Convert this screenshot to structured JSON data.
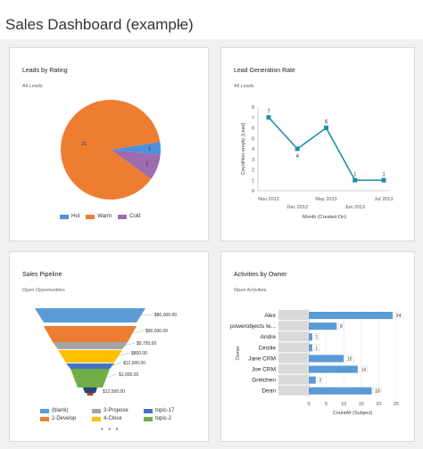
{
  "header": {
    "title": "Sales Dashboard (example)",
    "chevron_icon": "chevron-down-icon"
  },
  "cards": {
    "leads_by_rating": {
      "title": "Leads by Rating",
      "subtitle": "All Leads",
      "chart_data": {
        "type": "pie",
        "slices": [
          {
            "name": "Hot",
            "value": 1,
            "color": "#4f8fdc"
          },
          {
            "name": "Warm",
            "value": 21,
            "color": "#ed7d31"
          },
          {
            "name": "Cold",
            "value": 2,
            "color": "#9e6bae"
          }
        ],
        "data_labels": [
          "1",
          "21",
          "2"
        ],
        "legend": [
          "Hot",
          "Warm",
          "Cold"
        ],
        "legend_position": "bottom"
      }
    },
    "lead_generation_rate": {
      "title": "Lead Generation Rate",
      "subtitle": "All Leads",
      "chart_data": {
        "type": "line",
        "x": [
          "Nov 2012",
          "Dec 2012",
          "May 2013",
          "Jun 2013",
          "Jul 2013"
        ],
        "y": [
          7,
          4,
          6,
          1,
          1
        ],
        "ylim": [
          0,
          8
        ],
        "yticks": [
          "0",
          "1",
          "2",
          "3",
          "4",
          "5",
          "6",
          "7",
          "8"
        ],
        "xlabel": "Month (Created On)",
        "ylabel": "CountNon-empty (Lead)",
        "color": "#1f8fa8",
        "data_labels": [
          "7",
          "4",
          "6",
          "1",
          "1"
        ]
      }
    },
    "sales_pipeline": {
      "title": "Sales Pipeline",
      "subtitle": "Open Opportunities",
      "chart_data": {
        "type": "funnel",
        "stages": [
          {
            "name": "(blank)",
            "label": "$80,000.00",
            "color": "#5b9bd5"
          },
          {
            "name": "2-Develop",
            "label": "$90,000.00",
            "color": "#ed7d31"
          },
          {
            "name": "3-Propose",
            "label": "$5,750.00",
            "color": "#a5a5a5"
          },
          {
            "name": "4-Close",
            "label": "$800.00",
            "color": "#ffc000"
          },
          {
            "name": "topic-17",
            "label": "$12,000.00",
            "color": "#4472c4"
          },
          {
            "name": "topic-2",
            "label": "$1,500.00",
            "color": "#70ad47"
          },
          {
            "name": "",
            "label": "$12,500.00",
            "color": "#264478"
          },
          {
            "name": "",
            "label": "",
            "color": "#c0392b"
          }
        ],
        "legend": [
          "(blank)",
          "3-Propose",
          "topic-17",
          "2-Develop",
          "4-Close",
          "topic-2"
        ],
        "more": "• • •"
      }
    },
    "activities_by_owner": {
      "title": "Activities by Owner",
      "subtitle": "Open Activities",
      "chart_data": {
        "type": "bar",
        "orientation": "horizontal",
        "categories": [
          "Alex",
          "powerobjects te...",
          "Andre",
          "Cecilie",
          "Jane CRM",
          "Joe CRM",
          "Gretchen",
          "Dean"
        ],
        "values": [
          24,
          8,
          1,
          1,
          10,
          14,
          2,
          18
        ],
        "data_labels": [
          "24",
          "8",
          "1",
          "1",
          "10",
          "14",
          "2",
          "18"
        ],
        "xlim": [
          0,
          25
        ],
        "xticks": [
          "0",
          "5",
          "10",
          "15",
          "20",
          "25"
        ],
        "xlabel": "CountAll (Subject)",
        "ylabel": "Owner",
        "color": "#5b9bd5"
      }
    }
  }
}
